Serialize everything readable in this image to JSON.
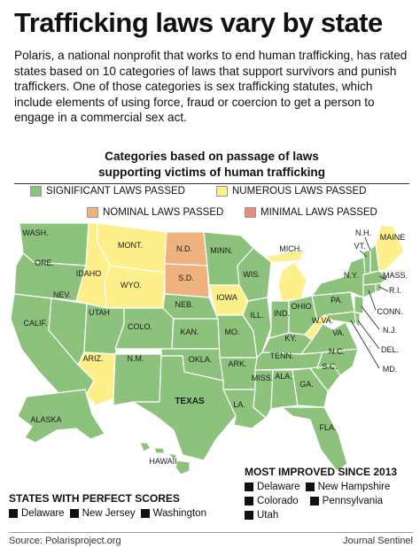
{
  "title": "Trafficking laws vary by state",
  "intro": "Polaris, a national nonprofit that works to end human trafficking, has rated states based on 10 categories of laws that support survivors and punish traffickers. One of those categories is sex trafficking statutes, which include elements of using force, fraud or coercion to get a person to engage in a commercial sex act.",
  "map_title_line1": "Categories based on passage of laws",
  "map_title_line2": "supporting victims of human trafficking",
  "legend": [
    {
      "label": "SIGNIFICANT LAWS PASSED",
      "color": "#8dc27d"
    },
    {
      "label": "NUMEROUS LAWS PASSED",
      "color": "#fdf08a"
    },
    {
      "label": "NOMINAL LAWS PASSED",
      "color": "#efb27f"
    },
    {
      "label": "MINIMAL LAWS PASSED",
      "color": "#e88c79"
    }
  ],
  "colors": {
    "significant": "#8dc27d",
    "numerous": "#fdf08a",
    "nominal": "#efb27f",
    "minimal": "#e88c79",
    "border": "#ffffff"
  },
  "states": {
    "wash": "WASH.",
    "ore": "ORE.",
    "calif": "CALIF.",
    "idaho": "IDAHO",
    "nev": "NEV.",
    "mont": "MONT.",
    "wyo": "WYO.",
    "utah": "UTAH",
    "ariz": "ARIZ.",
    "colo": "COLO.",
    "nm": "N.M.",
    "nd": "N.D.",
    "sd": "S.D.",
    "neb": "NEB.",
    "kan": "KAN.",
    "okla": "OKLA.",
    "texas": "TEXAS",
    "minn": "MINN.",
    "iowa": "IOWA",
    "mo": "MO.",
    "ark": "ARK.",
    "la": "LA.",
    "wis": "WIS.",
    "ill": "ILL.",
    "miss": "MISS.",
    "mich": "MICH.",
    "ind": "IND.",
    "ohio": "OHIO",
    "ky": "KY.",
    "tenn": "TENN.",
    "ala": "ALA.",
    "ga": "GA.",
    "fla": "FLA.",
    "sc": "S.C.",
    "nc": "N.C.",
    "va": "VA.",
    "wva": "W.VA.",
    "pa": "PA.",
    "ny": "N.Y.",
    "vt": "VT.",
    "nh": "N.H.",
    "maine": "MAINE",
    "mass": "MASS.",
    "ri": "R.I.",
    "conn": "CONN.",
    "nj": "N.J.",
    "del": "DEL.",
    "md": "MD.",
    "alaska": "ALASKA",
    "hawaii": "HAWAII"
  },
  "improved": {
    "heading": "MOST IMPROVED SINCE 2013",
    "items": [
      "Delaware",
      "New Hampshire",
      "Colorado",
      "Pennsylvania",
      "Utah"
    ]
  },
  "perfect": {
    "heading": "STATES WITH PERFECT SCORES",
    "items": [
      "Delaware",
      "New Jersey",
      "Washington"
    ]
  },
  "source": "Source: Polarisproject.org",
  "credit": "Journal Sentinel"
}
